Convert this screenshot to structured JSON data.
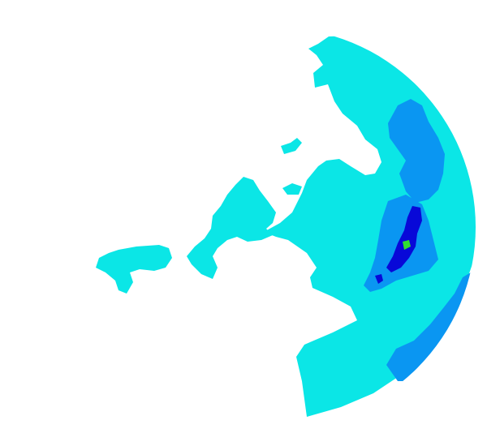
{
  "map": {
    "type": "weather-radar-reflectivity",
    "background_color": "#ffffff",
    "intensity_levels": [
      {
        "level": 1,
        "color": "#0be6e6"
      },
      {
        "level": 2,
        "color": "#0a96f2"
      },
      {
        "level": 3,
        "color": "#0808d8"
      },
      {
        "level": 4,
        "color": "#30e030"
      }
    ]
  }
}
